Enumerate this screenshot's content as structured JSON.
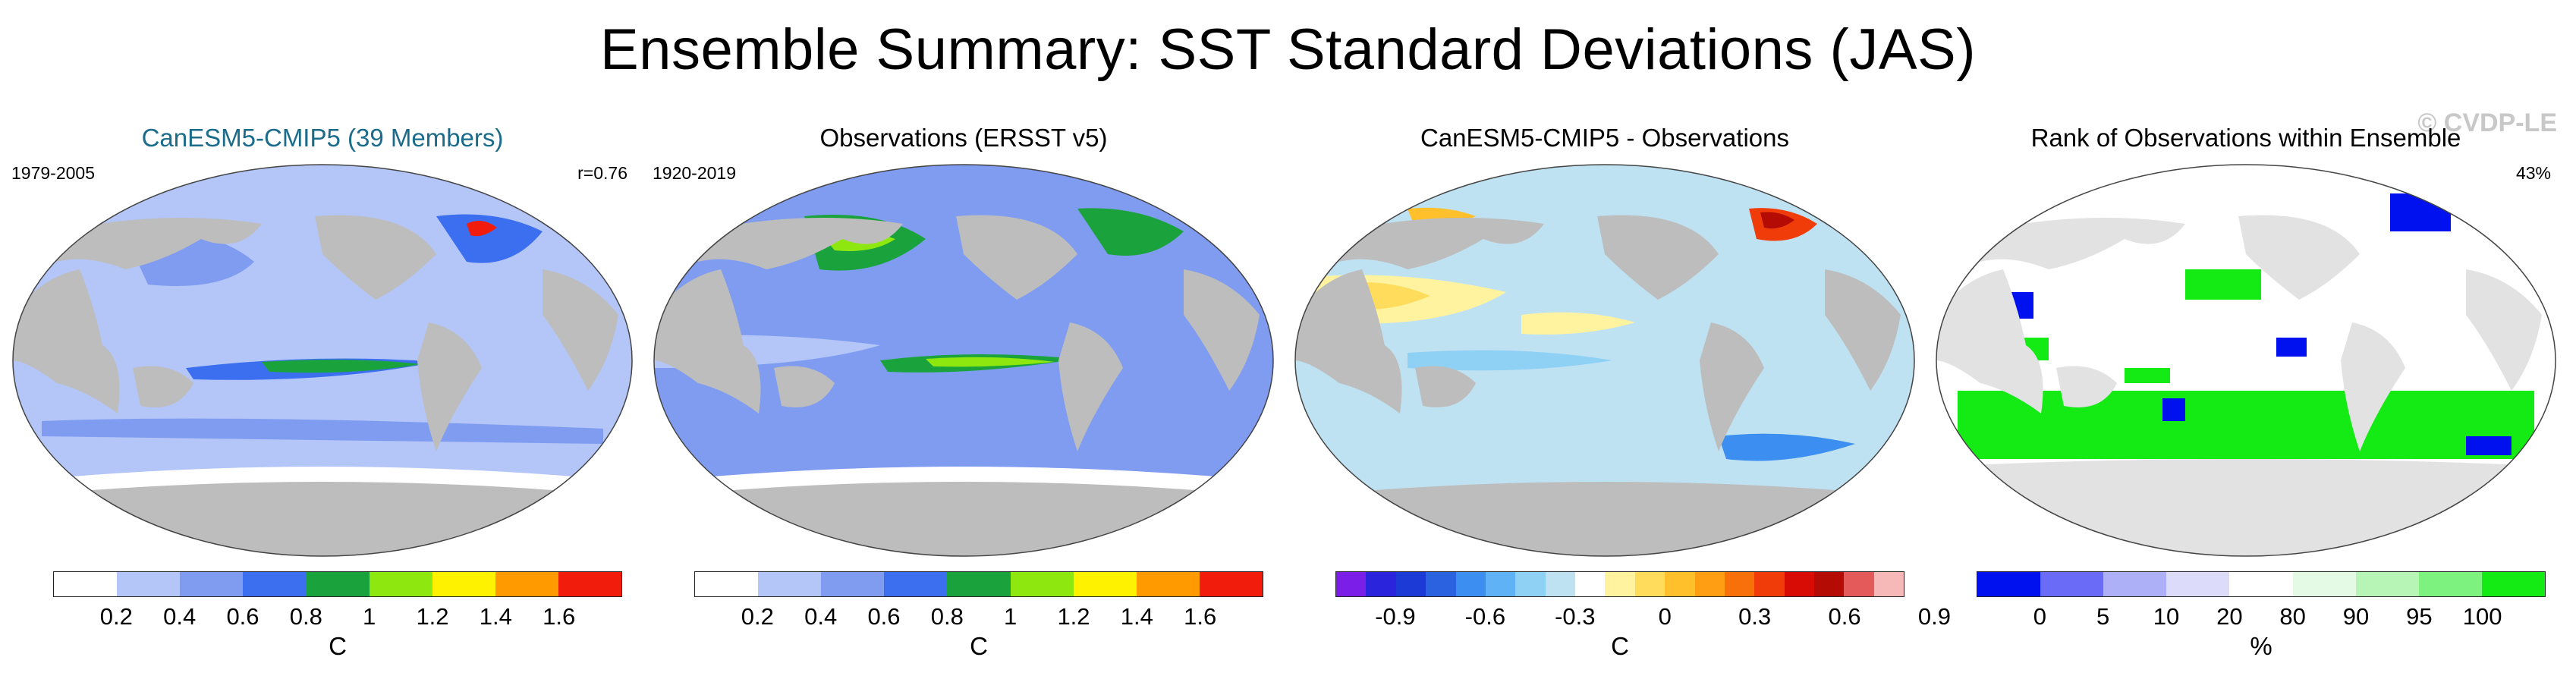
{
  "title": "Ensemble Summary: SST Standard Deviations (JAS)",
  "watermark": "© CVDP-LE",
  "colors": {
    "land": "#bdbdbd",
    "ocean_base": "#b3c6f7",
    "title_teal": "#1b6b8a"
  },
  "panels": [
    {
      "title": "CanESM5-CMIP5 (39 Members)",
      "left_note": "1979-2005",
      "right_note": "r=0.76",
      "colorbar": {
        "colors": [
          "#ffffff",
          "#b3c6f7",
          "#7f9cf1",
          "#3c6ff0",
          "#1aa33c",
          "#8ee80f",
          "#fff200",
          "#ff9a00",
          "#f21c0c"
        ],
        "tick_labels": [
          "0.2",
          "0.4",
          "0.6",
          "0.8",
          "1",
          "1.2",
          "1.4",
          "1.6"
        ],
        "unit": "C"
      }
    },
    {
      "title": "Observations (ERSST v5)",
      "left_note": "1920-2019",
      "right_note": "",
      "colorbar": {
        "colors": [
          "#ffffff",
          "#b3c6f7",
          "#7f9cf1",
          "#3c6ff0",
          "#1aa33c",
          "#8ee80f",
          "#fff200",
          "#ff9a00",
          "#f21c0c"
        ],
        "tick_labels": [
          "0.2",
          "0.4",
          "0.6",
          "0.8",
          "1",
          "1.2",
          "1.4",
          "1.6"
        ],
        "unit": "C"
      }
    },
    {
      "title": "CanESM5-CMIP5 - Observations",
      "left_note": "",
      "right_note": "",
      "colorbar": {
        "colors": [
          "#7a1ee8",
          "#2a24dc",
          "#1c3ad6",
          "#2a62e0",
          "#3c8ef0",
          "#5fb2f6",
          "#8fd0f5",
          "#bfe2f2",
          "#ffffff",
          "#fff3a0",
          "#ffdc5c",
          "#ffc02c",
          "#ff9e12",
          "#f7700a",
          "#ef3c08",
          "#d80c04",
          "#b40c04",
          "#e45a5a",
          "#f7b8b8"
        ],
        "tick_labels": [
          "-0.9",
          "-0.6",
          "-0.3",
          "0",
          "0.3",
          "0.6",
          "0.9"
        ],
        "unit": "C"
      }
    },
    {
      "title": "Rank of Observations within Ensemble",
      "left_note": "",
      "right_note": "43%",
      "colorbar": {
        "colors": [
          "#0011f0",
          "#6a6cf7",
          "#aeb0f7",
          "#dcdcfa",
          "#ffffff",
          "#e4fae4",
          "#b7f5b7",
          "#7ef27e",
          "#14ea14"
        ],
        "tick_labels": [
          "0",
          "5",
          "10",
          "20",
          "80",
          "90",
          "95",
          "100"
        ],
        "unit": "%"
      }
    }
  ]
}
